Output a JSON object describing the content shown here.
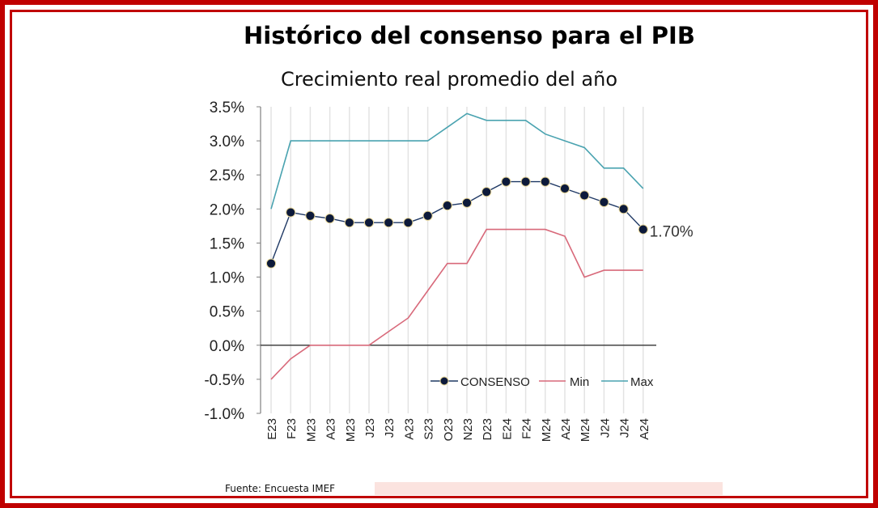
{
  "title": "Histórico del consenso para el PIB",
  "subtitle": "Crecimiento real promedio del año",
  "source": "Fuente: Encuesta IMEF",
  "colors": {
    "frame": "#c00000",
    "consenso_line": "#1f3864",
    "consenso_marker": "#0d1a3a",
    "min": "#d8697a",
    "max": "#4aa3b0"
  },
  "chart_data": {
    "type": "line",
    "categories": [
      "E23",
      "F23",
      "M23",
      "A23",
      "M23",
      "J23",
      "J23",
      "A23",
      "S23",
      "O23",
      "N23",
      "D23",
      "E24",
      "F24",
      "M24",
      "A24",
      "M24",
      "J24",
      "J24",
      "A24"
    ],
    "ylim": [
      -1.0,
      3.5
    ],
    "yticks": [
      -1.0,
      -0.5,
      0.0,
      0.5,
      1.0,
      1.5,
      2.0,
      2.5,
      3.0,
      3.5
    ],
    "ytick_labels": [
      "-1.0%",
      "-0.5%",
      "0.0%",
      "0.5%",
      "1.0%",
      "1.5%",
      "2.0%",
      "2.5%",
      "3.0%",
      "3.5%"
    ],
    "grid": "vertical",
    "legend": "bottom-right",
    "series": [
      {
        "name": "CONSENSO",
        "values": [
          1.2,
          1.95,
          1.9,
          1.86,
          1.8,
          1.8,
          1.8,
          1.8,
          1.9,
          2.05,
          2.09,
          2.25,
          2.4,
          2.4,
          2.4,
          2.3,
          2.2,
          2.1,
          2.0,
          1.7
        ],
        "markers": true
      },
      {
        "name": "Min",
        "values": [
          -0.5,
          -0.2,
          0.0,
          0.0,
          0.0,
          0.0,
          0.2,
          0.4,
          0.8,
          1.2,
          1.2,
          1.7,
          1.7,
          1.7,
          1.7,
          1.6,
          1.0,
          1.1,
          1.1,
          1.1
        ]
      },
      {
        "name": "Max",
        "values": [
          2.0,
          3.0,
          3.0,
          3.0,
          3.0,
          3.0,
          3.0,
          3.0,
          3.0,
          3.2,
          3.4,
          3.3,
          3.3,
          3.3,
          3.1,
          3.0,
          2.9,
          2.6,
          2.6,
          2.3
        ]
      }
    ],
    "annotation": "1.70%"
  }
}
